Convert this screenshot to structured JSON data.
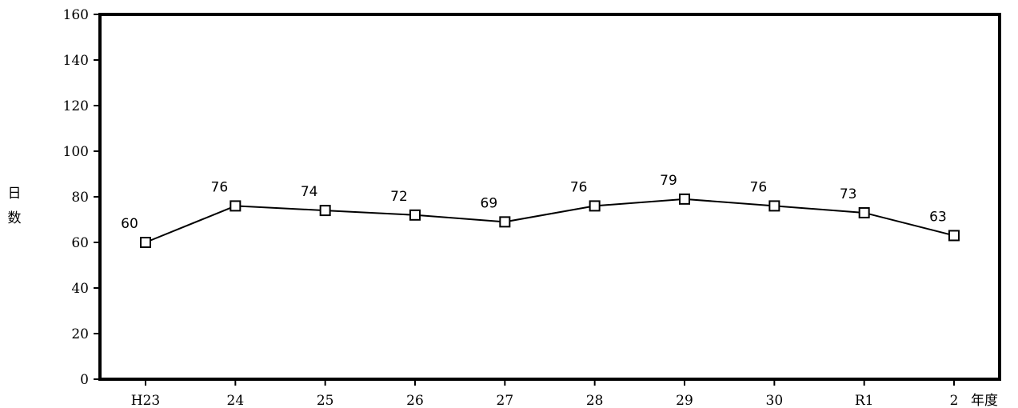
{
  "chart_data": {
    "type": "line",
    "categories": [
      "H23",
      "24",
      "25",
      "26",
      "27",
      "28",
      "29",
      "30",
      "R1",
      "2"
    ],
    "values": [
      60,
      76,
      74,
      72,
      69,
      76,
      79,
      76,
      73,
      63
    ],
    "data_labels": [
      "60",
      "76",
      "74",
      "72",
      "69",
      "76",
      "79",
      "76",
      "73",
      "63"
    ],
    "y_ticks": [
      "0",
      "20",
      "40",
      "60",
      "80",
      "100",
      "120",
      "140",
      "160"
    ],
    "ylim": [
      0,
      160
    ],
    "ylabel": "日数",
    "xlabel": "年度",
    "grid": false,
    "marker": "square-open",
    "line_color": "#000000",
    "legend": "none"
  }
}
